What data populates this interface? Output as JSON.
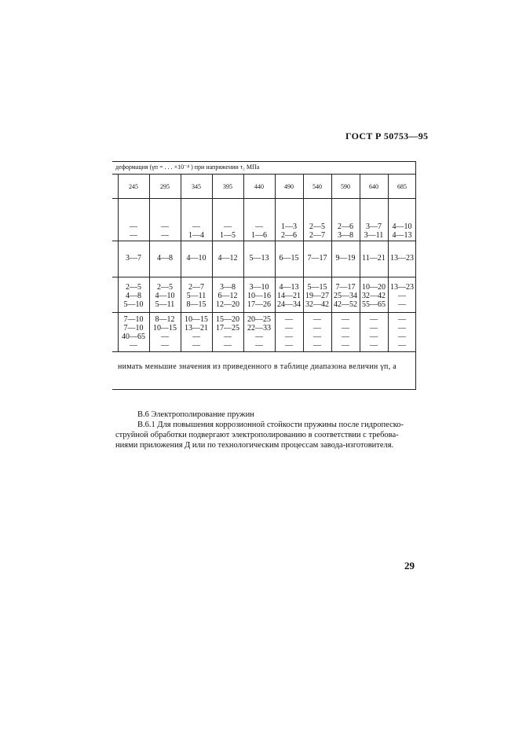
{
  "header": {
    "doc_id": "ГОСТ Р 50753—95"
  },
  "table": {
    "caption": "деформация (γп = . . . ×10⁻⁴ ) при напряжении τ₂ МПа",
    "columns": [
      "245",
      "295",
      "345",
      "395",
      "440",
      "490",
      "540",
      "590",
      "640",
      "685"
    ],
    "rows": [
      [
        [
          "—",
          "—"
        ],
        [
          "—",
          "—"
        ],
        [
          "—",
          "1—4"
        ],
        [
          "—",
          "1—5"
        ],
        [
          "—",
          "1—6"
        ],
        [
          "1—3",
          "2—6"
        ],
        [
          "2—5",
          "2—7"
        ],
        [
          "2—6",
          "3—8"
        ],
        [
          "3—7",
          "3—11"
        ],
        [
          "4—10",
          "4—13"
        ]
      ],
      [
        [
          "3—7"
        ],
        [
          "4—8"
        ],
        [
          "4—10"
        ],
        [
          "4—12"
        ],
        [
          "5—13"
        ],
        [
          "6—15"
        ],
        [
          "7—17"
        ],
        [
          "9—19"
        ],
        [
          "11—21"
        ],
        [
          "13—23"
        ]
      ],
      [
        [
          "2—5",
          "4—8",
          "5—10"
        ],
        [
          "2—5",
          "4—10",
          "5—11"
        ],
        [
          "2—7",
          "5—11",
          "8—15"
        ],
        [
          "3—8",
          "6—12",
          "12—20"
        ],
        [
          "3—10",
          "10—16",
          "17—26"
        ],
        [
          "4—13",
          "14—21",
          "24—34"
        ],
        [
          "5—15",
          "19—27",
          "32—42"
        ],
        [
          "7—17",
          "25—34",
          "42—52"
        ],
        [
          "10—20",
          "32—42",
          "55—65"
        ],
        [
          "13—23",
          "—",
          "—"
        ]
      ],
      [
        [
          "7—10",
          "7—10",
          "40—65",
          "—"
        ],
        [
          "8—12",
          "10—15",
          "—",
          "—"
        ],
        [
          "10—15",
          "13—21",
          "—",
          "—"
        ],
        [
          "15—20",
          "17—25",
          "—",
          "—"
        ],
        [
          "20—25",
          "22—33",
          "—",
          "—"
        ],
        [
          "—",
          "—",
          "—",
          "—"
        ],
        [
          "—",
          "—",
          "—",
          "—"
        ],
        [
          "—",
          "—",
          "—",
          "—"
        ],
        [
          "—",
          "—",
          "—",
          "—"
        ],
        [
          "—",
          "—",
          "—",
          "—"
        ]
      ]
    ],
    "note": "нимать меньшие значения из приведенного в таблице диапазона величин γп, а"
  },
  "section": {
    "heading": "В.6 Электрополирование пружин",
    "para_lines": [
      "В.6.1 Для повышения коррозионной стойкости пружины после гидропеско-",
      "струйной обработки подвергают электрополированию в соответствии с требова-",
      "ниями приложения Д или по технологическим процессам завода-изготовителя."
    ]
  },
  "page_number": "29"
}
